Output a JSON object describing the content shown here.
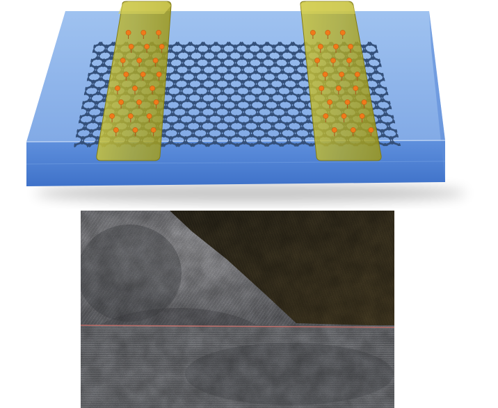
{
  "figure": {
    "device": {
      "substrate": "transparent-blue-substrate",
      "lattice": "hexagonal-carbon-lattice",
      "contacts_count": 2,
      "colors": {
        "substrate_top": "#8fb6ec",
        "substrate_side": "#4f82d8",
        "substrate_edge": "#6b9be0",
        "lattice": "#34507a",
        "contact": "#b7b12a",
        "contact_edge": "#7e7a14",
        "atom": "#f07a1a"
      }
    },
    "micrograph": {
      "kind": "lattice-fringe-micrograph",
      "colors": {
        "dark_region": "#403722",
        "gray_region": "#8a8a8e",
        "interface_line": "#c9706a"
      }
    }
  }
}
